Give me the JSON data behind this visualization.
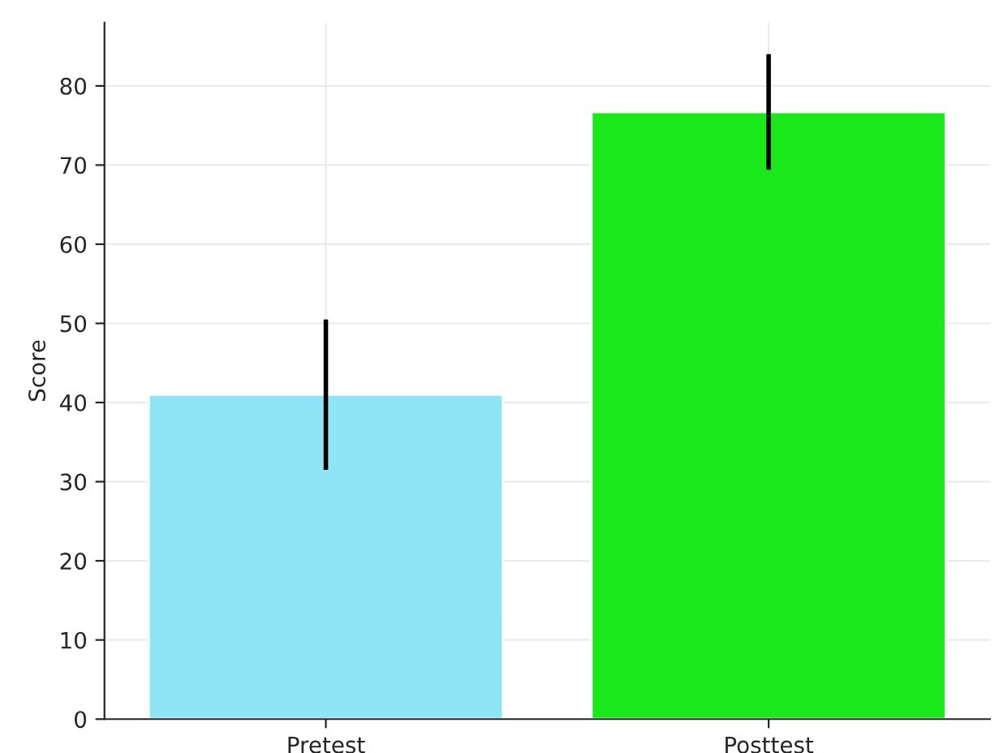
{
  "chart_data": {
    "type": "bar",
    "ylabel": "Score",
    "categories": [
      "Pretest",
      "Posttest"
    ],
    "values": [
      41,
      76.7
    ],
    "colors": [
      "#8fe4f6",
      "#1be81b"
    ],
    "errors": [
      9.5,
      7.3
    ],
    "ylim": [
      0,
      88
    ],
    "yticks": [
      0,
      10,
      20,
      30,
      40,
      50,
      60,
      70,
      80
    ],
    "grid": true
  }
}
